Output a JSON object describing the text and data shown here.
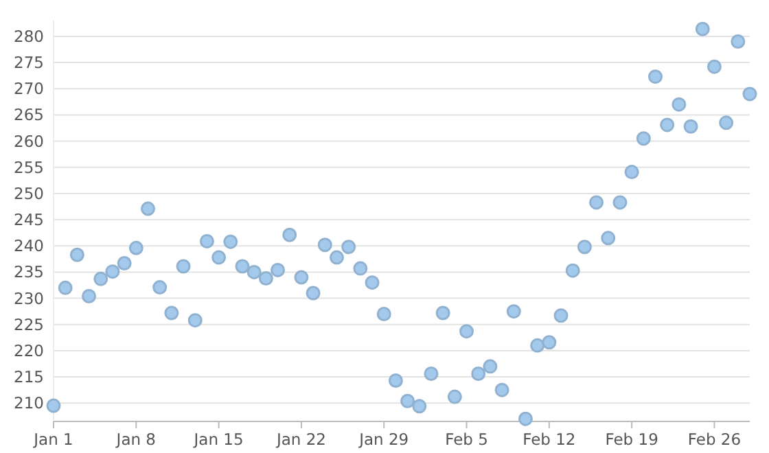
{
  "chart_data": {
    "type": "scatter",
    "x": [
      "--01-01",
      "--01-02",
      "--01-03",
      "--01-04",
      "--01-05",
      "--01-06",
      "--01-07",
      "--01-08",
      "--01-09",
      "--01-10",
      "--01-11",
      "--01-12",
      "--01-13",
      "--01-14",
      "--01-15",
      "--01-16",
      "--01-17",
      "--01-18",
      "--01-19",
      "--01-20",
      "--01-21",
      "--01-22",
      "--01-23",
      "--01-24",
      "--01-25",
      "--01-26",
      "--01-27",
      "--01-28",
      "--01-29",
      "--01-30",
      "--01-31",
      "--02-01",
      "--02-02",
      "--02-03",
      "--02-04",
      "--02-05",
      "--02-06",
      "--02-07",
      "--02-08",
      "--02-09",
      "--02-10",
      "--02-11",
      "--02-12",
      "--02-13",
      "--02-14",
      "--02-15",
      "--02-16",
      "--02-17",
      "--02-18",
      "--02-19",
      "--02-20",
      "--02-21",
      "--02-22",
      "--02-23",
      "--02-24",
      "--02-25",
      "--02-26",
      "--02-27",
      "--02-28",
      "--02-29"
    ],
    "values": [
      209.5,
      232,
      238.3,
      230.4,
      233.7,
      235.1,
      236.7,
      239.6,
      247.1,
      232.1,
      227.2,
      236.1,
      225.8,
      240.9,
      237.8,
      240.8,
      236.1,
      235,
      233.8,
      235.4,
      242.1,
      234,
      231,
      240.2,
      237.8,
      239.8,
      235.7,
      233,
      227,
      214.3,
      210.4,
      209.4,
      215.6,
      227.2,
      211.2,
      223.7,
      215.6,
      217,
      212.5,
      227.5,
      207,
      221,
      221.6,
      226.7,
      235.3,
      239.8,
      248.3,
      241.5,
      248.3,
      254.1,
      260.5,
      272.3,
      263.1,
      267,
      262.8,
      281.4,
      274.2,
      263.5,
      279,
      269
    ],
    "color": "#a3c9ec",
    "marker": "circle",
    "grid": "y",
    "xlim": [
      "--01-01",
      "--02-29"
    ],
    "xticks": [
      {
        "value": "--01-01",
        "label": "Jan 1"
      },
      {
        "value": "--01-08",
        "label": "Jan 8"
      },
      {
        "value": "--01-15",
        "label": "Jan 15"
      },
      {
        "value": "--01-22",
        "label": "Jan 22"
      },
      {
        "value": "--01-29",
        "label": "Jan 29"
      },
      {
        "value": "--02-05",
        "label": "Feb 5"
      },
      {
        "value": "--02-12",
        "label": "Feb 12"
      },
      {
        "value": "--02-19",
        "label": "Feb 19"
      },
      {
        "value": "--02-26",
        "label": "Feb 26"
      }
    ],
    "ylim": [
      206.5,
      283
    ],
    "yticks": [
      210,
      215,
      220,
      225,
      230,
      235,
      240,
      245,
      250,
      255,
      260,
      265,
      270,
      275,
      280
    ]
  }
}
